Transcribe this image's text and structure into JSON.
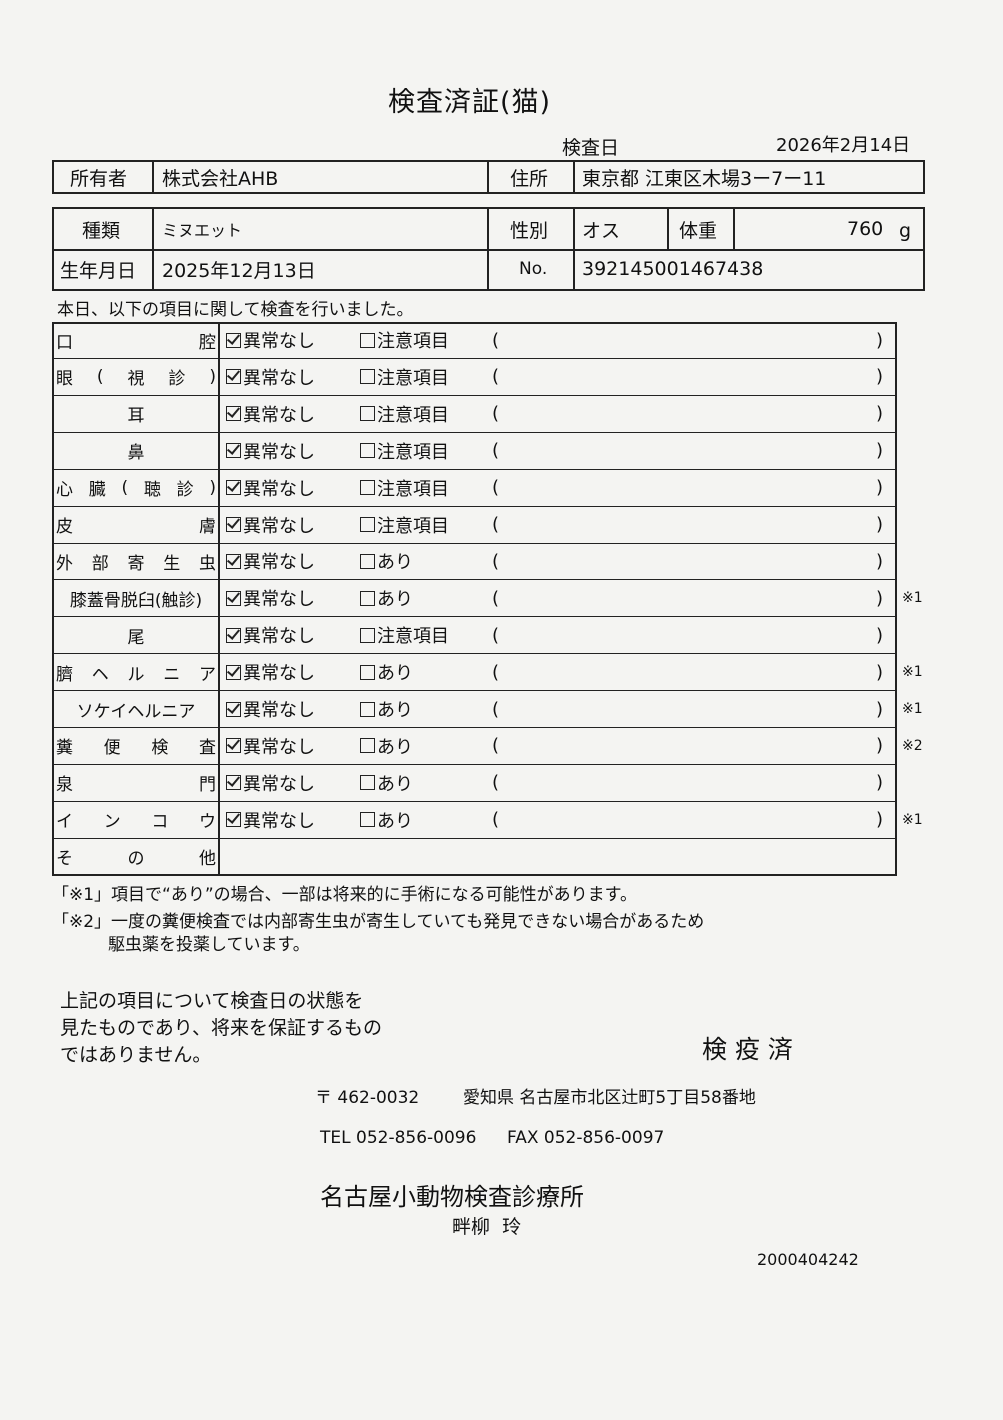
{
  "title": "検査済証(猫)",
  "exam_date_label": "検査日",
  "exam_date": "2026年2月14日",
  "owner": {
    "label": "所有者",
    "value": "株式会社AHB",
    "address_label": "住所",
    "address": "東京都 江東区木場3ー7ー11"
  },
  "pet": {
    "breed_label": "種類",
    "breed": "ミヌエット",
    "sex_label": "性別",
    "sex": "オス",
    "weight_label": "体重",
    "weight": "760",
    "weight_unit": "g",
    "dob_label": "生年月日",
    "dob": "2025年12月13日",
    "no_label": "No.",
    "no": "392145001467438"
  },
  "intro": "本日、以下の項目に関して検査を行いました。",
  "items": [
    {
      "label": [
        "口",
        "腔"
      ],
      "ok": "異常なし",
      "alt": "注意項目",
      "checked": true,
      "note": ""
    },
    {
      "label": [
        "眼",
        "(",
        "視",
        "診",
        ")"
      ],
      "ok": "異常なし",
      "alt": "注意項目",
      "checked": true,
      "note": ""
    },
    {
      "label": [
        "耳"
      ],
      "ok": "異常なし",
      "alt": "注意項目",
      "checked": true,
      "note": ""
    },
    {
      "label": [
        "鼻"
      ],
      "ok": "異常なし",
      "alt": "注意項目",
      "checked": true,
      "note": ""
    },
    {
      "label": [
        "心",
        "臓",
        "(",
        "聴",
        "診",
        ")"
      ],
      "ok": "異常なし",
      "alt": "注意項目",
      "checked": true,
      "note": ""
    },
    {
      "label": [
        "皮",
        "膚"
      ],
      "ok": "異常なし",
      "alt": "注意項目",
      "checked": true,
      "note": ""
    },
    {
      "label": [
        "外",
        "部",
        "寄",
        "生",
        "虫"
      ],
      "ok": "異常なし",
      "alt": "あり",
      "checked": true,
      "note": ""
    },
    {
      "label": [
        "膝蓋骨脱臼(触診)"
      ],
      "ok": "異常なし",
      "alt": "あり",
      "checked": true,
      "note": "※1"
    },
    {
      "label": [
        "尾"
      ],
      "ok": "異常なし",
      "alt": "注意項目",
      "checked": true,
      "note": ""
    },
    {
      "label": [
        "臍",
        "ヘ",
        "ル",
        "ニ",
        "ア"
      ],
      "ok": "異常なし",
      "alt": "あり",
      "checked": true,
      "note": "※1"
    },
    {
      "label": [
        "ソケイヘルニア"
      ],
      "ok": "異常なし",
      "alt": "あり",
      "checked": true,
      "note": "※1"
    },
    {
      "label": [
        "糞",
        "便",
        "検",
        "査"
      ],
      "ok": "異常なし",
      "alt": "あり",
      "checked": true,
      "note": "※2"
    },
    {
      "label": [
        "泉",
        "門"
      ],
      "ok": "異常なし",
      "alt": "あり",
      "checked": true,
      "note": ""
    },
    {
      "label": [
        "イ",
        "ン",
        "コ",
        "ウ"
      ],
      "ok": "異常なし",
      "alt": "あり",
      "checked": true,
      "note": "※1"
    },
    {
      "label": [
        "そ",
        "の",
        "他"
      ],
      "ok": "",
      "alt": "",
      "checked": false,
      "note": ""
    }
  ],
  "paren_open": "(",
  "paren_close": ")",
  "footnote1": "「※1」項目で“あり”の場合、一部は将来的に手術になる可能性があります。",
  "footnote2a": "「※2」一度の糞便検査では内部寄生虫が寄生していても発見できない場合があるため",
  "footnote2b": "駆虫薬を投薬しています。",
  "disclaimer": [
    "上記の項目について検査日の状態を",
    "見たものであり、将来を保証するもの",
    "ではありません。"
  ],
  "stamp": "検 疫 済",
  "clinic": {
    "postal": "〒 462-0032",
    "address": "愛知県 名古屋市北区辻町5丁目58番地",
    "tel": "TEL 052-856-0096",
    "fax": "FAX 052-856-0097",
    "name": "名古屋小動物検査診療所",
    "vet": "畔柳  玲"
  },
  "doc_number": "2000404242"
}
